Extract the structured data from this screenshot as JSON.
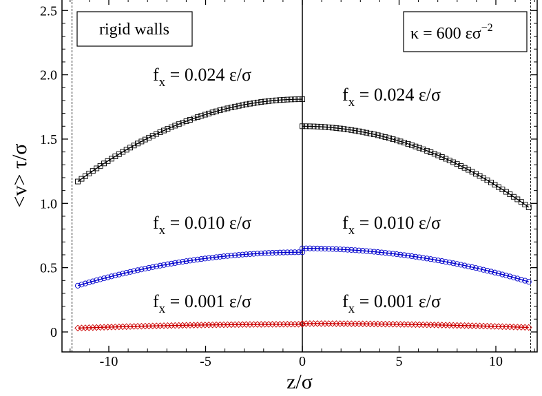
{
  "chart_data": {
    "type": "scatter",
    "xlabel": "z/σ",
    "ylabel": "<v> τ/σ",
    "xlim": [
      -12.2,
      12.0
    ],
    "ylim": [
      -0.08,
      2.6
    ],
    "x_ticks": [
      -10,
      -5,
      0,
      5,
      10
    ],
    "x_tick_labels": [
      "-10",
      "-5",
      "0",
      "5",
      "10"
    ],
    "y_ticks": [
      0,
      0.5,
      1.0,
      1.5,
      2.0,
      2.5
    ],
    "y_tick_labels": [
      "0",
      "0.5",
      "1.0",
      "1.5",
      "2.0",
      "2.5"
    ],
    "wall_lines_x": [
      -11.9,
      11.8
    ],
    "panels": [
      {
        "label": "rigid walls",
        "label_position": "top-left",
        "x_range": [
          -11.6,
          0
        ],
        "series": [
          {
            "force": "f_x = 0.024 ε/σ",
            "marker": "square",
            "color": "#000000",
            "y_wall": 1.17,
            "y_center": 1.81
          },
          {
            "force": "f_x = 0.010 ε/σ",
            "marker": "circle",
            "color": "#0000cc",
            "y_wall": 0.36,
            "y_center": 0.62
          },
          {
            "force": "f_x = 0.001 ε/σ",
            "marker": "diamond",
            "color": "#cc0000",
            "y_wall": 0.03,
            "y_center": 0.06
          }
        ]
      },
      {
        "label": "κ = 600 εσ⁻²",
        "label_position": "top-right",
        "x_range": [
          0,
          11.7
        ],
        "series": [
          {
            "force": "f_x = 0.024 ε/σ",
            "marker": "square",
            "color": "#000000",
            "y_wall": 0.97,
            "y_center": 1.6
          },
          {
            "force": "f_x = 0.010 ε/σ",
            "marker": "circle",
            "color": "#0000cc",
            "y_wall": 0.39,
            "y_center": 0.65
          },
          {
            "force": "f_x = 0.001 ε/σ",
            "marker": "diamond",
            "color": "#cc0000",
            "y_wall": 0.035,
            "y_center": 0.065
          }
        ]
      }
    ],
    "annotations": {
      "left_024": {
        "prefix": "f",
        "sub": "x",
        "rest": " = 0.024 ε/σ"
      },
      "right_024": {
        "prefix": "f",
        "sub": "x",
        "rest": " = 0.024 ε/σ"
      },
      "left_010": {
        "prefix": "f",
        "sub": "x",
        "rest": " = 0.010 ε/σ"
      },
      "right_010": {
        "prefix": "f",
        "sub": "x",
        "rest": " = 0.010 ε/σ"
      },
      "left_001": {
        "prefix": "f",
        "sub": "x",
        "rest": " = 0.001 ε/σ"
      },
      "right_001": {
        "prefix": "f",
        "sub": "x",
        "rest": " = 0.001 ε/σ"
      }
    },
    "kappa_label": {
      "main": "κ = 600 εσ",
      "sup": "−2"
    }
  }
}
